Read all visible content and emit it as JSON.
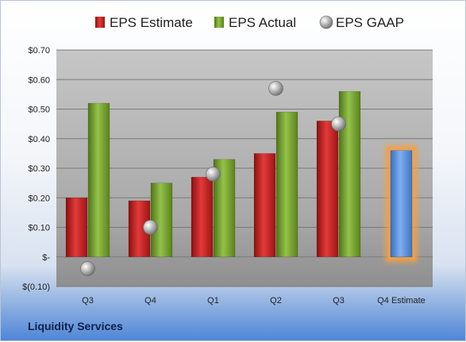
{
  "company": "Liquidity Services",
  "chart_data": {
    "type": "bar",
    "categories": [
      "Q3",
      "Q4",
      "Q1",
      "Q2",
      "Q3",
      "Q4 Estimate"
    ],
    "series": [
      {
        "name": "EPS Estimate",
        "values": [
          0.2,
          0.19,
          0.27,
          0.35,
          0.46,
          null
        ],
        "color": "#cc1f1f"
      },
      {
        "name": "EPS Actual",
        "values": [
          0.52,
          0.25,
          0.33,
          0.49,
          0.56,
          null
        ],
        "color": "#6f9a2a"
      },
      {
        "name": "EPS GAAP",
        "type": "scatter",
        "values": [
          -0.04,
          0.1,
          0.28,
          0.57,
          0.45,
          null
        ],
        "color": "#a9a9a9"
      },
      {
        "name": "Q4 Estimate",
        "values": [
          null,
          null,
          null,
          null,
          null,
          0.36
        ],
        "color": "#4f86d6",
        "highlight": "#f5a040",
        "in_legend": false
      }
    ],
    "ylim": [
      -0.1,
      0.7
    ],
    "yticks": [
      0.7,
      0.6,
      0.5,
      0.4,
      0.3,
      0.2,
      0.1,
      0.0,
      -0.1
    ],
    "ytick_labels": [
      "$0.70",
      "$0.60",
      "$0.50",
      "$0.40",
      "$0.30",
      "$0.20",
      "$0.10",
      "$-",
      "$(0.10)"
    ],
    "grid": true,
    "legend_position": "top-center"
  }
}
